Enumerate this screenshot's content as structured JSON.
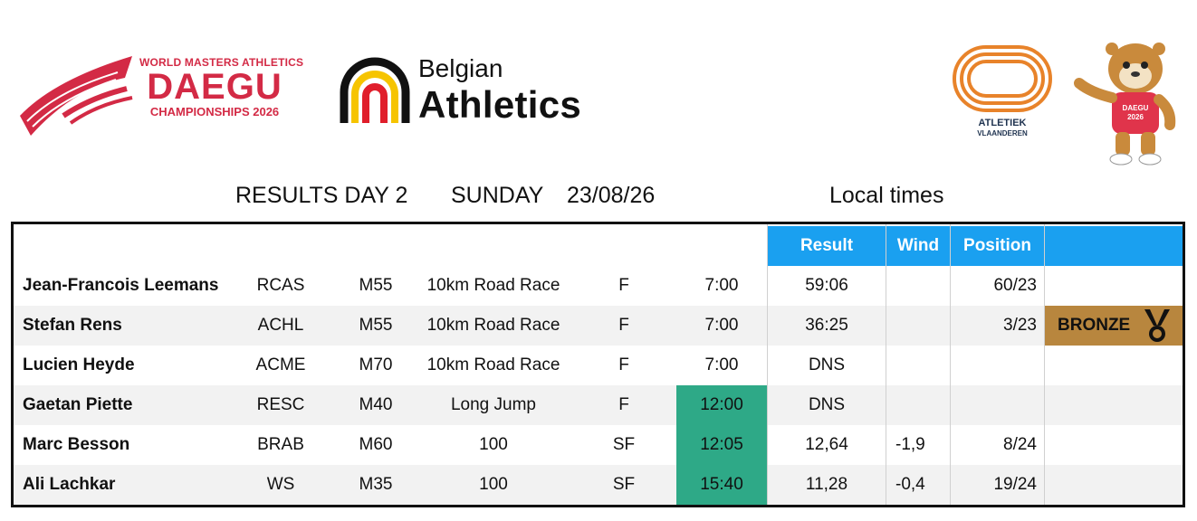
{
  "header": {
    "daegu_logo": {
      "line1": "WORLD MASTERS ATHLETICS",
      "line2": "DAEGU",
      "line3": "CHAMPIONSHIPS 2026"
    },
    "belgian_logo": {
      "word1": "Belgian",
      "word2": "Athletics"
    },
    "atletiek_logo": {
      "word1": "ATLETIEK",
      "word2": "VLAANDEREN"
    },
    "mascot": {
      "badge_line1": "DAEGU",
      "badge_line2": "2026"
    }
  },
  "title": {
    "results": "RESULTS DAY 2",
    "day": "SUNDAY",
    "date": "23/08/26",
    "local": "Local times"
  },
  "table": {
    "headers": {
      "result": "Result",
      "wind": "Wind",
      "position": "Position"
    },
    "rows": [
      {
        "name": "Jean-Francois Leemans",
        "club": "RCAS",
        "category": "M55",
        "event": "10km Road Race",
        "round": "F",
        "time": "7:00",
        "time_highlight": false,
        "result": "59:06",
        "wind": "",
        "position": "60/23",
        "medal": ""
      },
      {
        "name": "Stefan Rens",
        "club": "ACHL",
        "category": "M55",
        "event": "10km Road Race",
        "round": "F",
        "time": "7:00",
        "time_highlight": false,
        "result": "36:25",
        "wind": "",
        "position": "3/23",
        "medal": "BRONZE"
      },
      {
        "name": "Lucien Heyde",
        "club": "ACME",
        "category": "M70",
        "event": "10km Road Race",
        "round": "F",
        "time": "7:00",
        "time_highlight": false,
        "result": "DNS",
        "wind": "",
        "position": "",
        "medal": ""
      },
      {
        "name": "Gaetan Piette",
        "club": "RESC",
        "category": "M40",
        "event": "Long Jump",
        "round": "F",
        "time": "12:00",
        "time_highlight": true,
        "result": "DNS",
        "wind": "",
        "position": "",
        "medal": ""
      },
      {
        "name": "Marc Besson",
        "club": "BRAB",
        "category": "M60",
        "event": "100",
        "round": "SF",
        "time": "12:05",
        "time_highlight": true,
        "result": "12,64",
        "wind": "-1,9",
        "position": "8/24",
        "medal": ""
      },
      {
        "name": "Ali Lachkar",
        "club": "WS",
        "category": "M35",
        "event": "100",
        "round": "SF",
        "time": "15:40",
        "time_highlight": true,
        "result": "11,28",
        "wind": "-0,4",
        "position": "19/24",
        "medal": ""
      }
    ]
  },
  "colors": {
    "header_blue": "#1aa0f0",
    "highlight_green": "#2ea987",
    "bronze": "#b8863e",
    "daegu_red": "#d32a45",
    "atletiek_orange": "#e8832a"
  }
}
